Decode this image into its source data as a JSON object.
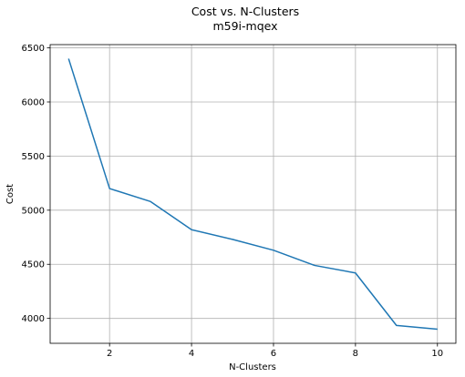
{
  "chart_data": {
    "type": "line",
    "title": "Cost vs. N-Clusters",
    "subtitle": "m59i-mqex",
    "xlabel": "N-Clusters",
    "ylabel": "Cost",
    "xlim": [
      0.55,
      10.45
    ],
    "ylim": [
      3770,
      6530
    ],
    "xticks": [
      2,
      4,
      6,
      8,
      10
    ],
    "yticks": [
      4000,
      4500,
      5000,
      5500,
      6000,
      6500
    ],
    "grid": true,
    "series": [
      {
        "color": "#1f77b4",
        "x": [
          1,
          2,
          3,
          4,
          5,
          6,
          7,
          8,
          9,
          10
        ],
        "y": [
          6400,
          5200,
          5080,
          4820,
          4730,
          4630,
          4490,
          4420,
          3935,
          3900
        ]
      }
    ]
  }
}
